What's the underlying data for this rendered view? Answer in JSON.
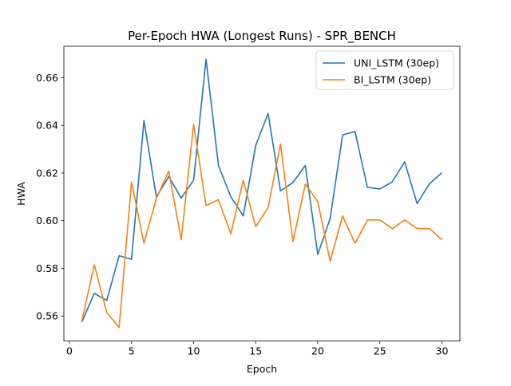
{
  "chart_data": {
    "type": "line",
    "title": "Per-Epoch HWA (Longest Runs) - SPR_BENCH",
    "xlabel": "Epoch",
    "ylabel": "HWA",
    "xlim": [
      -0.45,
      31.45
    ],
    "ylim": [
      0.5495,
      0.6732
    ],
    "xticks": [
      0,
      5,
      10,
      15,
      20,
      25,
      30
    ],
    "yticks": [
      0.56,
      0.58,
      0.6,
      0.62,
      0.64,
      0.66
    ],
    "ytick_labels": [
      "0.56",
      "0.58",
      "0.60",
      "0.62",
      "0.64",
      "0.66"
    ],
    "grid": false,
    "legend_position": "top-right",
    "x": [
      1,
      2,
      3,
      4,
      5,
      6,
      7,
      8,
      9,
      10,
      11,
      12,
      13,
      14,
      15,
      16,
      17,
      18,
      19,
      20,
      21,
      22,
      23,
      24,
      25,
      26,
      27,
      28,
      29,
      30
    ],
    "series": [
      {
        "name": "UNI_LSTM (30ep)",
        "color": "#1f77b4",
        "values": [
          0.5575,
          0.5695,
          0.5665,
          0.5853,
          0.5838,
          0.642,
          0.61,
          0.6185,
          0.6095,
          0.617,
          0.6678,
          0.6232,
          0.61,
          0.602,
          0.6315,
          0.645,
          0.6125,
          0.616,
          0.6232,
          0.5858,
          0.601,
          0.636,
          0.6374,
          0.614,
          0.6133,
          0.6163,
          0.6247,
          0.6072,
          0.6155,
          0.6201
        ]
      },
      {
        "name": "BI_LSTM (30ep)",
        "color": "#ff7f0e",
        "values": [
          0.558,
          0.5815,
          0.5615,
          0.5552,
          0.6163,
          0.5905,
          0.6094,
          0.6208,
          0.592,
          0.6405,
          0.6064,
          0.6088,
          0.5945,
          0.617,
          0.5975,
          0.6055,
          0.6322,
          0.5912,
          0.6154,
          0.608,
          0.583,
          0.602,
          0.5905,
          0.6003,
          0.6003,
          0.5967,
          0.6003,
          0.5967,
          0.5967,
          0.592
        ]
      }
    ]
  }
}
